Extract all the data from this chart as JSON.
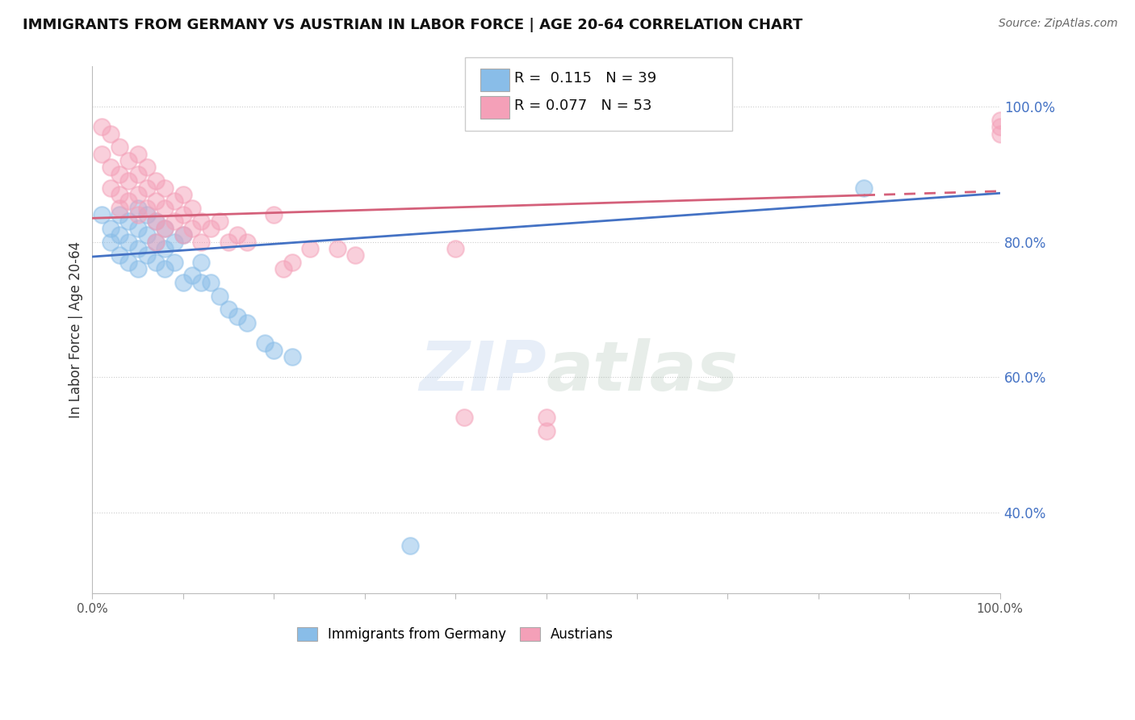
{
  "title": "IMMIGRANTS FROM GERMANY VS AUSTRIAN IN LABOR FORCE | AGE 20-64 CORRELATION CHART",
  "source": "Source: ZipAtlas.com",
  "ylabel": "In Labor Force | Age 20-64",
  "xlim": [
    0,
    1.0
  ],
  "ylim": [
    0.28,
    1.06
  ],
  "y_ticks_right": [
    0.4,
    0.6,
    0.8,
    1.0
  ],
  "y_tick_labels_right": [
    "40.0%",
    "60.0%",
    "80.0%",
    "100.0%"
  ],
  "blue_color": "#89bde8",
  "pink_color": "#f4a0b8",
  "trend_blue": "#4472c4",
  "trend_pink": "#d4607a",
  "blue_x": [
    0.01,
    0.02,
    0.02,
    0.03,
    0.03,
    0.03,
    0.04,
    0.04,
    0.04,
    0.05,
    0.05,
    0.05,
    0.05,
    0.06,
    0.06,
    0.06,
    0.07,
    0.07,
    0.07,
    0.08,
    0.08,
    0.08,
    0.09,
    0.09,
    0.1,
    0.1,
    0.11,
    0.12,
    0.12,
    0.13,
    0.14,
    0.15,
    0.16,
    0.17,
    0.19,
    0.2,
    0.22,
    0.35,
    0.85
  ],
  "blue_y": [
    0.84,
    0.82,
    0.8,
    0.84,
    0.81,
    0.78,
    0.83,
    0.8,
    0.77,
    0.85,
    0.82,
    0.79,
    0.76,
    0.84,
    0.81,
    0.78,
    0.83,
    0.8,
    0.77,
    0.82,
    0.79,
    0.76,
    0.8,
    0.77,
    0.81,
    0.74,
    0.75,
    0.77,
    0.74,
    0.74,
    0.72,
    0.7,
    0.69,
    0.68,
    0.65,
    0.64,
    0.63,
    0.35,
    0.88
  ],
  "pink_x": [
    0.01,
    0.01,
    0.02,
    0.02,
    0.02,
    0.03,
    0.03,
    0.03,
    0.03,
    0.04,
    0.04,
    0.04,
    0.05,
    0.05,
    0.05,
    0.05,
    0.06,
    0.06,
    0.06,
    0.07,
    0.07,
    0.07,
    0.07,
    0.08,
    0.08,
    0.08,
    0.09,
    0.09,
    0.1,
    0.1,
    0.1,
    0.11,
    0.11,
    0.12,
    0.12,
    0.13,
    0.14,
    0.15,
    0.16,
    0.17,
    0.2,
    0.21,
    0.22,
    0.24,
    0.27,
    0.29,
    0.4,
    0.41,
    0.5,
    0.5,
    1.0,
    1.0,
    1.0
  ],
  "pink_y": [
    0.97,
    0.93,
    0.96,
    0.91,
    0.88,
    0.94,
    0.9,
    0.87,
    0.85,
    0.92,
    0.89,
    0.86,
    0.93,
    0.9,
    0.87,
    0.84,
    0.91,
    0.88,
    0.85,
    0.89,
    0.86,
    0.83,
    0.8,
    0.88,
    0.85,
    0.82,
    0.86,
    0.83,
    0.87,
    0.84,
    0.81,
    0.85,
    0.82,
    0.83,
    0.8,
    0.82,
    0.83,
    0.8,
    0.81,
    0.8,
    0.84,
    0.76,
    0.77,
    0.79,
    0.79,
    0.78,
    0.79,
    0.54,
    0.54,
    0.52,
    0.98,
    0.97,
    0.96
  ]
}
